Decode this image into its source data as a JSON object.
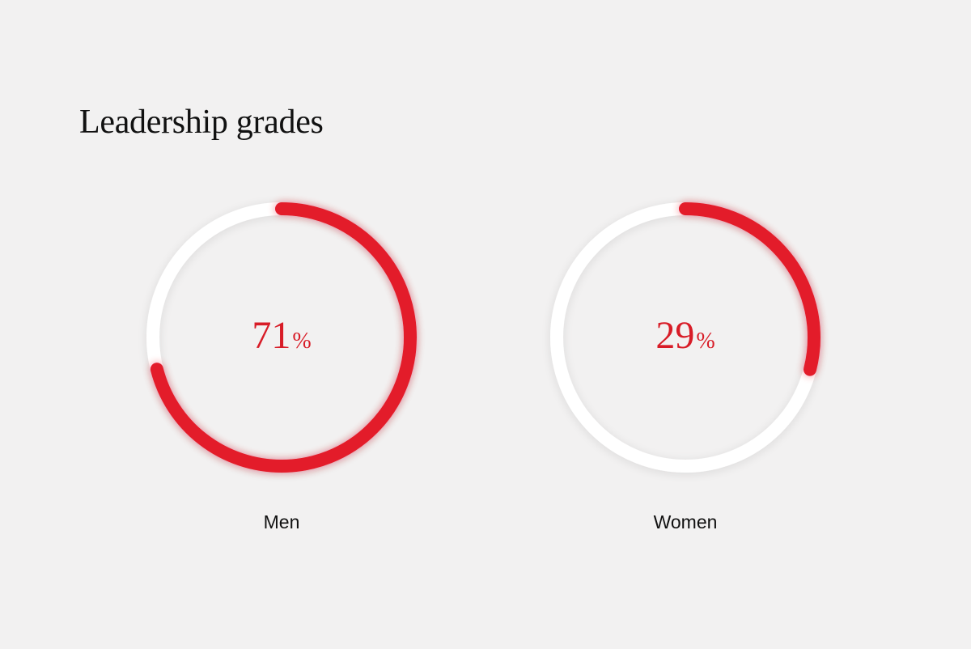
{
  "title": "Leadership grades",
  "colors": {
    "background": "#f2f1f1",
    "accent": "#e31b2b",
    "track": "#ffffff",
    "value_text": "#d81c27",
    "label_text": "#111111"
  },
  "chart_data": {
    "type": "pie",
    "title": "Leadership grades",
    "unit": "%",
    "series": [
      {
        "name": "Men",
        "value": 71,
        "display": "71",
        "unit": "%"
      },
      {
        "name": "Women",
        "value": 29,
        "display": "29",
        "unit": "%"
      }
    ],
    "max": 100,
    "grid": false,
    "legend": "none"
  }
}
